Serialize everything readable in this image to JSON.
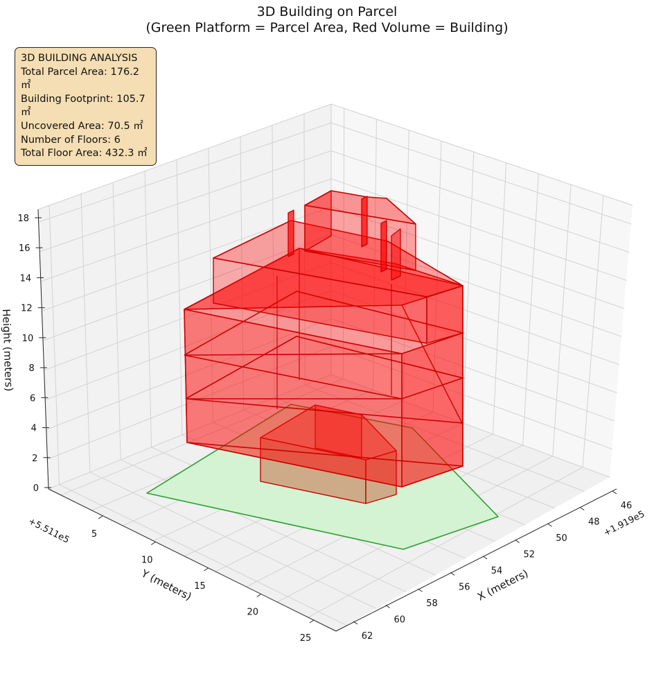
{
  "title_line1": "3D Building on Parcel",
  "title_line2": "(Green Platform = Parcel Area, Red Volume = Building)",
  "info": {
    "heading": "3D BUILDING ANALYSIS",
    "parcel": "Total Parcel Area: 176.2 ㎡",
    "footprint": "Building Footprint: 105.7 ㎡",
    "uncovered": "Uncovered Area: 70.5 ㎡",
    "floors": "Number of Floors: 6",
    "floor_area": "Total Floor Area: 432.3 ㎡"
  },
  "chart_data": {
    "type": "3d-polygon",
    "title": "3D Building on Parcel (Green Platform = Parcel Area, Red Volume = Building)",
    "xlabel": "X (meters)",
    "ylabel": "Y (meters)",
    "zlabel": "Height (meters)",
    "x_offset_label": "+1.919e5",
    "y_offset_label": "+5.511e5",
    "x_ticks": [
      "46",
      "48",
      "50",
      "52",
      "54",
      "56",
      "58",
      "60",
      "62"
    ],
    "y_ticks": [
      "5",
      "10",
      "15",
      "20",
      "25"
    ],
    "z_ticks": [
      "0",
      "2",
      "4",
      "6",
      "8",
      "10",
      "12",
      "14",
      "16",
      "18"
    ],
    "z_range": [
      0,
      18
    ],
    "grid": true,
    "colors": {
      "parcel_fill": "#d3f3d3",
      "parcel_edge": "#2ca02c",
      "building_fill": "#ff0000",
      "building_edge": "#cc0000",
      "info_box": "#f5deb3"
    },
    "series": [
      {
        "name": "Parcel Area",
        "role": "platform",
        "z": 0
      },
      {
        "name": "Building",
        "role": "volume",
        "floors": 6
      }
    ]
  }
}
